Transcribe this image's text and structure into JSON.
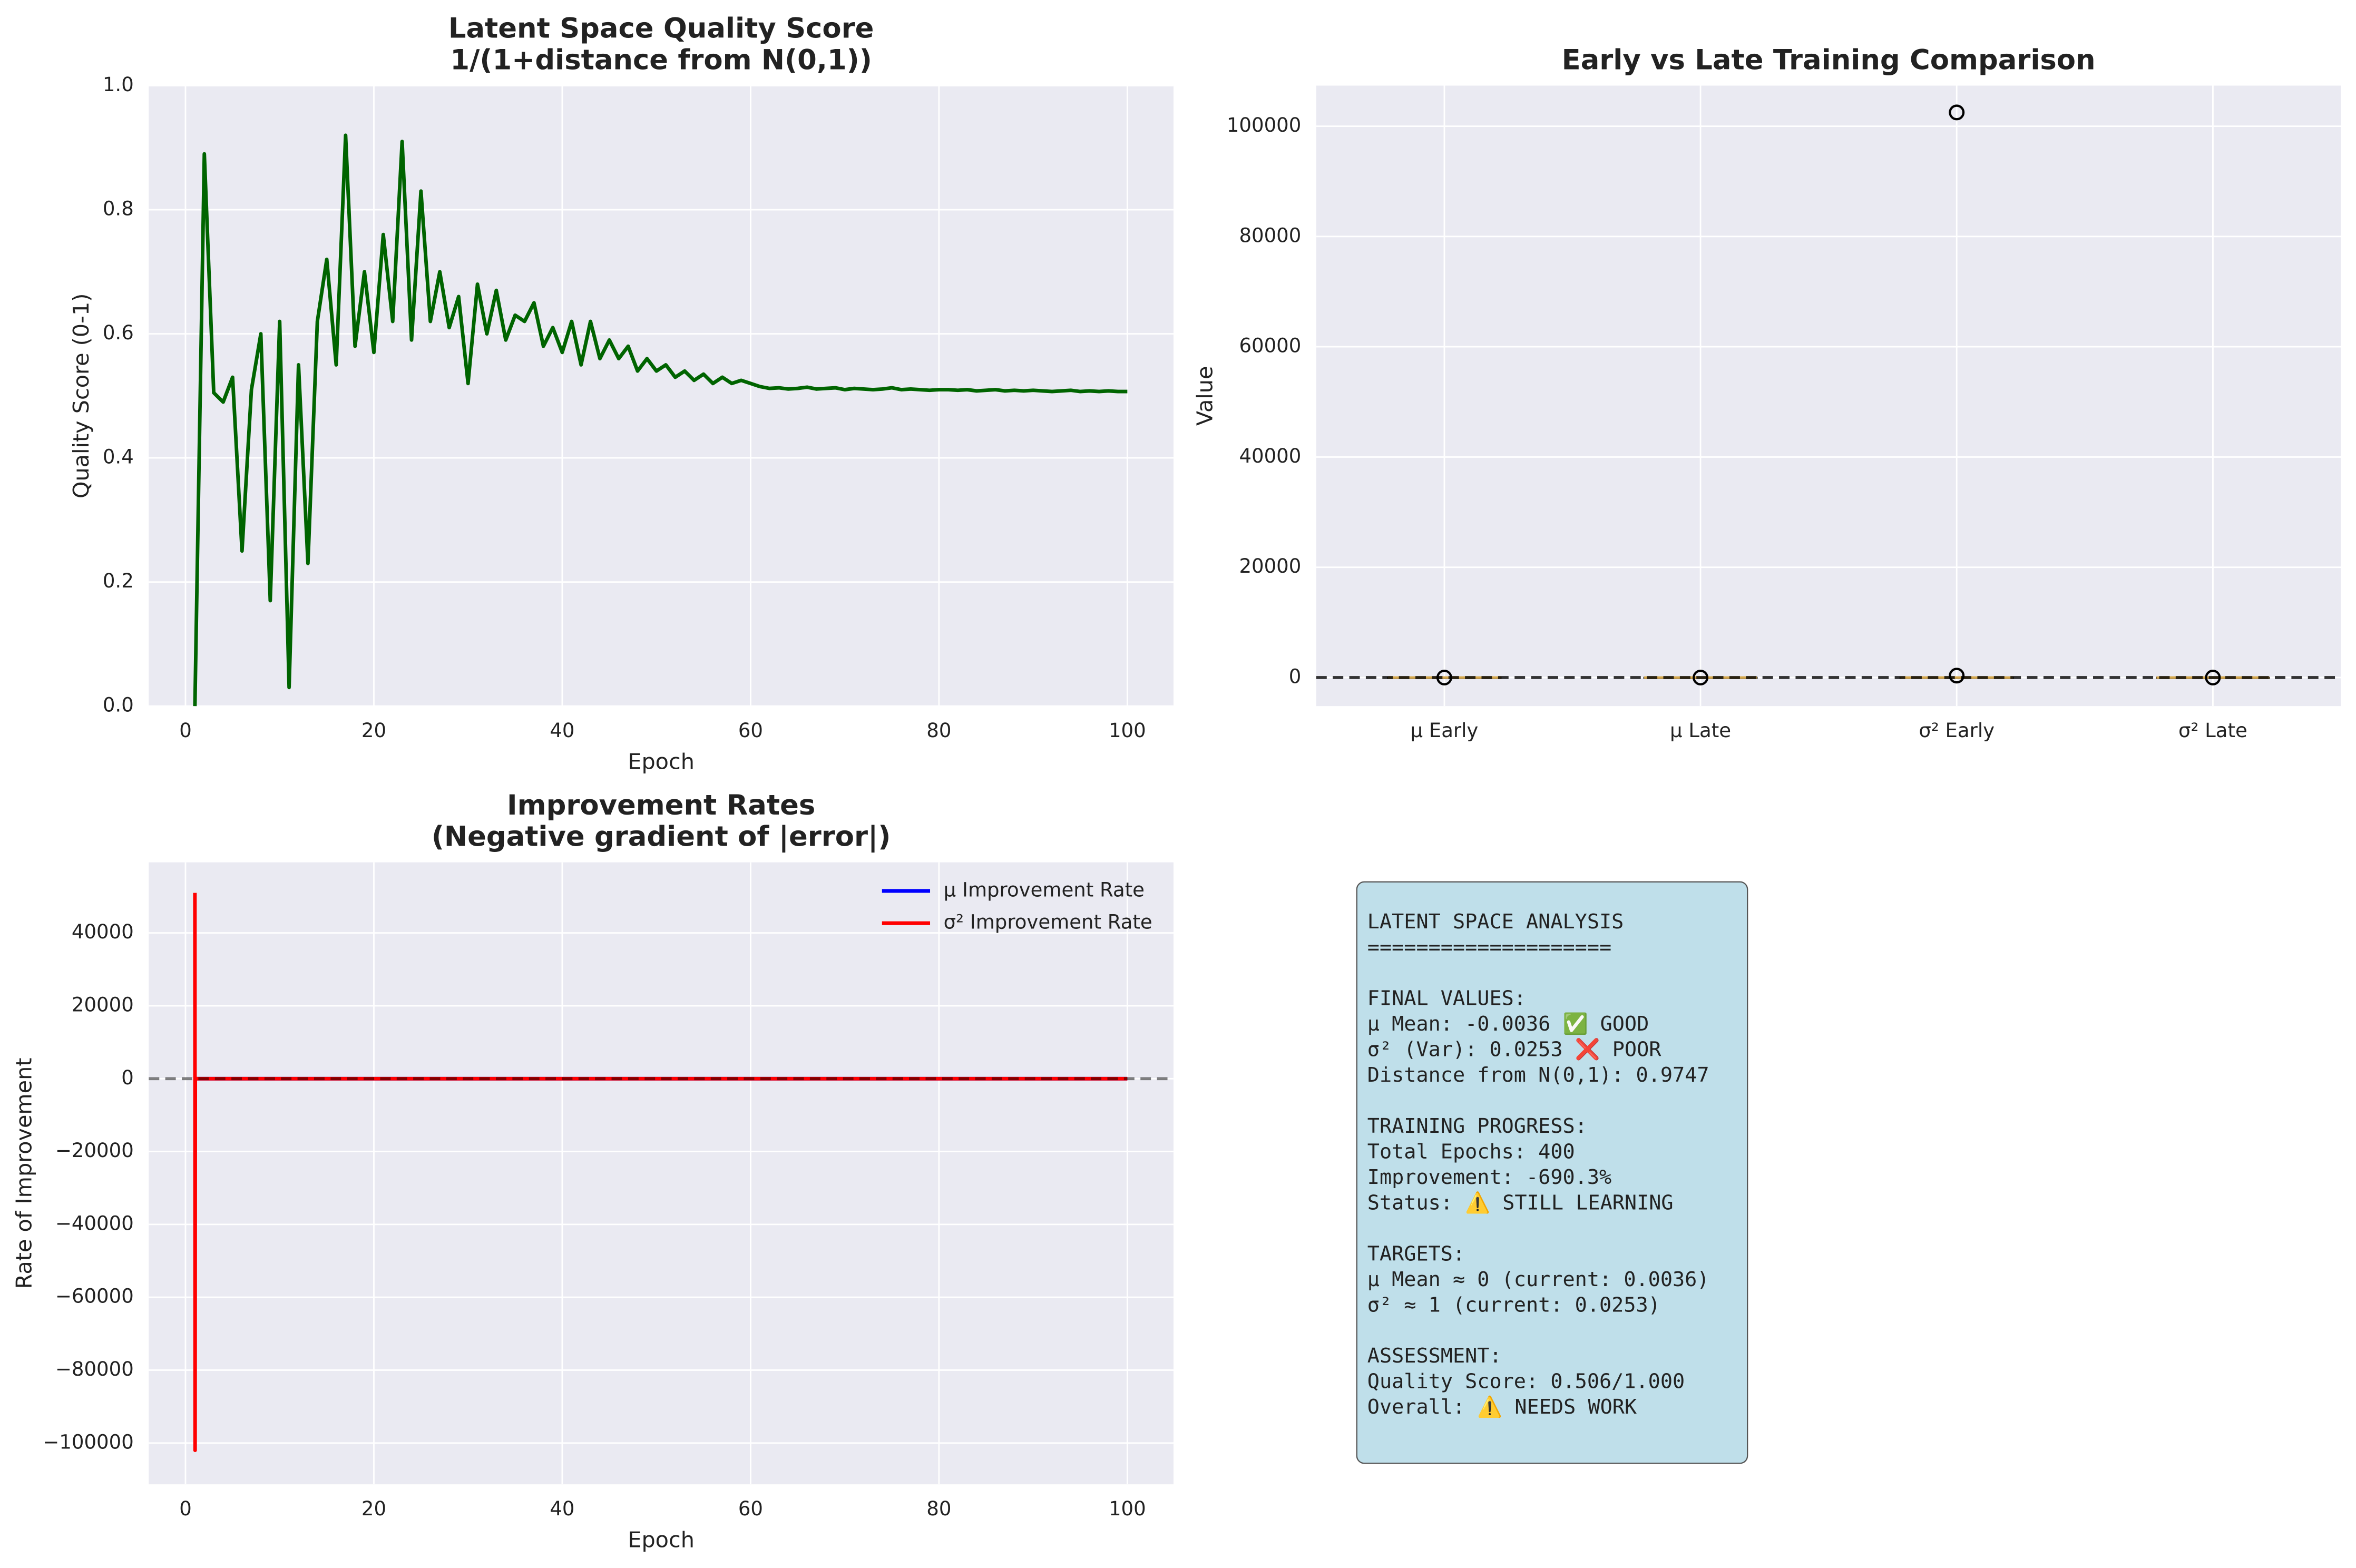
{
  "chart_data": [
    {
      "type": "line",
      "title": [
        "Latent Space Quality Score",
        "1/(1+distance from N(0,1))"
      ],
      "xlabel": "Epoch",
      "ylabel": "Quality Score (0-1)",
      "x": [
        1,
        2,
        3,
        4,
        5,
        6,
        7,
        8,
        9,
        10,
        11,
        12,
        13,
        14,
        15,
        16,
        17,
        18,
        19,
        20,
        21,
        22,
        23,
        24,
        25,
        26,
        27,
        28,
        29,
        30,
        31,
        32,
        33,
        34,
        35,
        36,
        37,
        38,
        39,
        40,
        41,
        42,
        43,
        44,
        45,
        46,
        47,
        48,
        49,
        50,
        51,
        52,
        53,
        54,
        55,
        56,
        57,
        58,
        59,
        60,
        61,
        62,
        63,
        64,
        65,
        66,
        67,
        68,
        69,
        70,
        71,
        72,
        73,
        74,
        75,
        76,
        77,
        78,
        79,
        80,
        81,
        82,
        83,
        84,
        85,
        86,
        87,
        88,
        89,
        90,
        91,
        92,
        93,
        94,
        95,
        96,
        97,
        98,
        99,
        100
      ],
      "values": [
        0.0,
        0.89,
        0.505,
        0.49,
        0.53,
        0.25,
        0.51,
        0.6,
        0.17,
        0.62,
        0.03,
        0.55,
        0.23,
        0.62,
        0.72,
        0.55,
        0.92,
        0.58,
        0.7,
        0.57,
        0.76,
        0.62,
        0.91,
        0.59,
        0.83,
        0.62,
        0.7,
        0.61,
        0.66,
        0.52,
        0.68,
        0.6,
        0.67,
        0.59,
        0.63,
        0.62,
        0.65,
        0.58,
        0.61,
        0.57,
        0.62,
        0.55,
        0.62,
        0.56,
        0.59,
        0.56,
        0.58,
        0.54,
        0.56,
        0.54,
        0.55,
        0.53,
        0.54,
        0.525,
        0.535,
        0.52,
        0.53,
        0.52,
        0.525,
        0.52,
        0.515,
        0.512,
        0.513,
        0.511,
        0.512,
        0.514,
        0.511,
        0.512,
        0.513,
        0.51,
        0.512,
        0.511,
        0.51,
        0.511,
        0.513,
        0.51,
        0.511,
        0.51,
        0.509,
        0.51,
        0.51,
        0.509,
        0.51,
        0.508,
        0.509,
        0.51,
        0.508,
        0.509,
        0.508,
        0.509,
        0.508,
        0.507,
        0.508,
        0.509,
        0.507,
        0.508,
        0.507,
        0.508,
        0.507,
        0.507
      ],
      "color": "#006400",
      "xlim": [
        -3.9,
        104.9
      ],
      "xticks": [
        0,
        20,
        40,
        60,
        80,
        100
      ],
      "ylim": [
        0,
        1
      ],
      "yticks": [
        {
          "value": 0,
          "label": "0.0"
        },
        0.2,
        0.4,
        0.6,
        0.8,
        {
          "value": 1,
          "label": "1.0"
        }
      ],
      "grid": true
    },
    {
      "type": "box",
      "title": [
        "Early vs Late Training Comparison"
      ],
      "ylabel": "Value",
      "categories": [
        "μ Early",
        "μ Late",
        "σ² Early",
        "σ² Late"
      ],
      "boxes": [
        {
          "whislo": -0.3,
          "q1": -0.1,
          "median": 0.0,
          "q3": 0.1,
          "whishi": 0.3,
          "fliers": [
            0.6
          ]
        },
        {
          "whislo": -0.05,
          "q1": -0.01,
          "median": 0.0,
          "q3": 0.01,
          "whishi": 0.05,
          "fliers": [
            0.08
          ]
        },
        {
          "whislo": 0.02,
          "q1": 0.5,
          "median": 2,
          "q3": 10,
          "whishi": 30,
          "fliers": [
            102500,
            350
          ]
        },
        {
          "whislo": 0.02,
          "q1": 0.025,
          "median": 0.026,
          "q3": 0.03,
          "whishi": 0.04,
          "fliers": [
            0.05
          ]
        }
      ],
      "median_color": "#d6a84d",
      "hline": 0,
      "ylim": [
        -5180,
        107360
      ],
      "yticks": [
        0,
        20000,
        40000,
        60000,
        80000,
        100000
      ],
      "grid": true
    },
    {
      "type": "line",
      "title": [
        "Improvement Rates",
        "(Negative gradient of |error|)"
      ],
      "xlabel": "Epoch",
      "ylabel": "Rate of Improvement",
      "x": [
        1,
        1.02,
        1.04,
        2,
        10,
        20,
        30,
        40,
        50,
        60,
        70,
        80,
        90,
        100
      ],
      "series": [
        {
          "name": "μ Improvement Rate",
          "color": "#0000ff",
          "values": [
            0.5,
            -0.3,
            0.1,
            0,
            0,
            0,
            0,
            0,
            0,
            0,
            0,
            0,
            0,
            0
          ]
        },
        {
          "name": "σ² Improvement Rate",
          "color": "#ff0000",
          "values": [
            51000,
            -102000,
            0,
            0,
            0,
            0,
            0,
            0,
            0,
            0,
            0,
            0,
            0,
            0
          ]
        }
      ],
      "hline": 0,
      "legend": "upper-right",
      "xlim": [
        -3.9,
        104.9
      ],
      "xticks": [
        0,
        20,
        40,
        60,
        80,
        100
      ],
      "ylim": [
        -111340,
        59380
      ],
      "yticks": [
        {
          "value": -100000,
          "label": "−100000"
        },
        {
          "value": -80000,
          "label": "−80000"
        },
        {
          "value": -60000,
          "label": "−60000"
        },
        {
          "value": -40000,
          "label": "−40000"
        },
        {
          "value": -20000,
          "label": "−20000"
        },
        0,
        20000,
        40000
      ],
      "grid": true
    }
  ],
  "text_panel": {
    "paragraphs": [
      [
        "LATENT SPACE ANALYSIS",
        "===================="
      ],
      [
        "FINAL VALUES:",
        "μ Mean: -0.0036 ✅ GOOD",
        "σ² (Var): 0.0253 ❌ POOR",
        "Distance from N(0,1): 0.9747"
      ],
      [
        "TRAINING PROGRESS:",
        "Total Epochs: 400",
        "Improvement: -690.3%",
        "Status: ⚠️ STILL LEARNING"
      ],
      [
        "TARGETS:",
        "μ Mean ≈ 0 (current: 0.0036)",
        "σ² ≈ 1 (current: 0.0253)"
      ],
      [
        "ASSESSMENT:",
        "Quality Score: 0.506/1.000",
        "Overall: ⚠️ NEEDS WORK"
      ]
    ]
  }
}
